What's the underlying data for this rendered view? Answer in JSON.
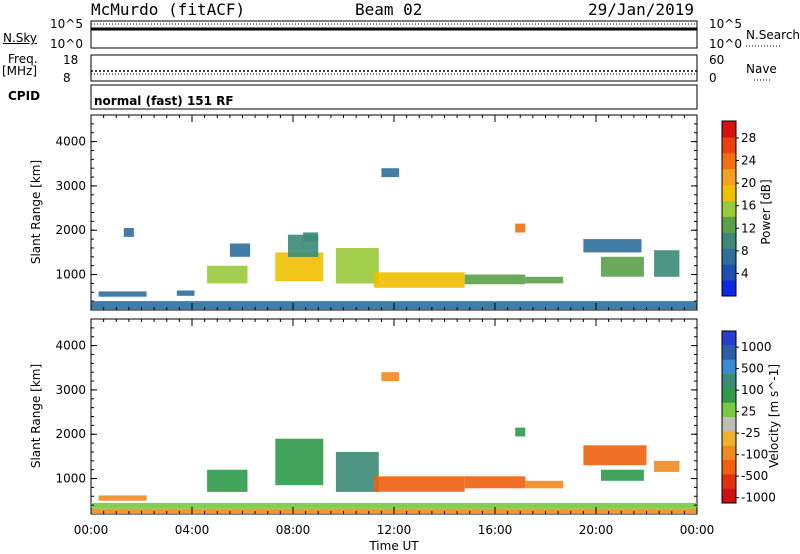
{
  "header": {
    "station": "McMurdo (fitACF)",
    "beam": "Beam 02",
    "date": "29/Jan/2019"
  },
  "panels": {
    "nsky": {
      "label": "N.Sky",
      "ticks": [
        "10^5",
        "10^0"
      ],
      "right_label": "N.Search",
      "right_ticks": [
        "10^5",
        "10^0"
      ]
    },
    "freq": {
      "label_line1": "Freq.",
      "label_line2": "[MHz]",
      "ticks": [
        "18",
        "8"
      ],
      "right_label": "Nave",
      "right_ticks": [
        "60",
        "0"
      ]
    },
    "cpid": {
      "label": "CPID",
      "text": "normal (fast) 151 RF"
    }
  },
  "colors": {
    "power": [
      "#0a28e6",
      "#1c4fb0",
      "#2f6e9a",
      "#3c8a76",
      "#5aa04a",
      "#9ac93a",
      "#f0c000",
      "#f4a020",
      "#f07010",
      "#e84010",
      "#d81010"
    ],
    "velocity": [
      "#2a3ccf",
      "#2a5fa8",
      "#3a8ad0",
      "#3c8a76",
      "#2f9a4a",
      "#78c840",
      "#bdbdb0",
      "#f0b030",
      "#f08a20",
      "#f06010",
      "#e03010",
      "#d01010"
    ]
  },
  "chart_data": [
    {
      "type": "heatmap",
      "name": "power",
      "xlabel": "",
      "ylabel": "Slant Range [km]",
      "x_ticks": [
        "00:00",
        "04:00",
        "08:00",
        "12:00",
        "16:00",
        "20:00",
        "00:00"
      ],
      "y_ticks": [
        1000,
        2000,
        3000,
        4000
      ],
      "ylim": [
        200,
        4600
      ],
      "xlim_hours": [
        0,
        24
      ],
      "colorbar": {
        "label": "Power [dB]",
        "ticks": [
          4,
          8,
          12,
          16,
          20,
          24,
          28
        ],
        "range": [
          0,
          31
        ]
      },
      "regions": [
        {
          "t0": 0.0,
          "t1": 24.0,
          "r0": 200,
          "r1": 400,
          "v": 6
        },
        {
          "t0": 0.3,
          "t1": 2.2,
          "r0": 500,
          "r1": 620,
          "v": 8
        },
        {
          "t0": 3.4,
          "t1": 4.1,
          "r0": 520,
          "r1": 640,
          "v": 6
        },
        {
          "t0": 4.6,
          "t1": 6.2,
          "r0": 800,
          "r1": 1200,
          "v": 16
        },
        {
          "t0": 7.3,
          "t1": 9.2,
          "r0": 850,
          "r1": 1500,
          "v": 18
        },
        {
          "t0": 7.8,
          "t1": 9.0,
          "r0": 1400,
          "r1": 1900,
          "v": 10
        },
        {
          "t0": 9.7,
          "t1": 11.4,
          "r0": 800,
          "r1": 1600,
          "v": 16
        },
        {
          "t0": 11.2,
          "t1": 14.8,
          "r0": 700,
          "r1": 1050,
          "v": 18
        },
        {
          "t0": 14.8,
          "t1": 17.2,
          "r0": 780,
          "r1": 1000,
          "v": 14
        },
        {
          "t0": 17.2,
          "t1": 18.7,
          "r0": 800,
          "r1": 950,
          "v": 12
        },
        {
          "t0": 20.2,
          "t1": 21.9,
          "r0": 950,
          "r1": 1400,
          "v": 12
        },
        {
          "t0": 22.3,
          "t1": 23.3,
          "r0": 950,
          "r1": 1550,
          "v": 10
        },
        {
          "t0": 5.5,
          "t1": 6.3,
          "r0": 1400,
          "r1": 1700,
          "v": 8
        },
        {
          "t0": 8.4,
          "t1": 9.0,
          "r0": 1750,
          "r1": 1950,
          "v": 10
        },
        {
          "t0": 11.5,
          "t1": 12.2,
          "r0": 3200,
          "r1": 3400,
          "v": 6
        },
        {
          "t0": 16.8,
          "t1": 17.2,
          "r0": 1950,
          "r1": 2150,
          "v": 24
        },
        {
          "t0": 19.5,
          "t1": 21.8,
          "r0": 1500,
          "r1": 1800,
          "v": 6
        },
        {
          "t0": 1.3,
          "t1": 1.7,
          "r0": 1850,
          "r1": 2050,
          "v": 6
        }
      ]
    },
    {
      "type": "heatmap",
      "name": "velocity",
      "xlabel": "Time UT",
      "ylabel": "Slant Range [km]",
      "x_ticks": [
        "00:00",
        "04:00",
        "08:00",
        "12:00",
        "16:00",
        "20:00",
        "00:00"
      ],
      "y_ticks": [
        1000,
        2000,
        3000,
        4000
      ],
      "ylim": [
        200,
        4600
      ],
      "xlim_hours": [
        0,
        24
      ],
      "colorbar": {
        "label": "Velocity [m s^-1]",
        "ticks": [
          1000,
          500,
          100,
          25,
          -25,
          -100,
          -500,
          -1000
        ]
      },
      "regions": [
        {
          "t0": 0.0,
          "t1": 24.0,
          "r0": 200,
          "r1": 320,
          "v": -120
        },
        {
          "t0": 0.0,
          "t1": 24.0,
          "r0": 320,
          "r1": 450,
          "v": 30
        },
        {
          "t0": 0.3,
          "t1": 2.2,
          "r0": 500,
          "r1": 620,
          "v": -200
        },
        {
          "t0": 4.6,
          "t1": 6.2,
          "r0": 700,
          "r1": 1200,
          "v": 60
        },
        {
          "t0": 7.3,
          "t1": 9.2,
          "r0": 850,
          "r1": 1900,
          "v": 80
        },
        {
          "t0": 9.7,
          "t1": 11.4,
          "r0": 700,
          "r1": 1600,
          "v": 200
        },
        {
          "t0": 11.2,
          "t1": 14.8,
          "r0": 700,
          "r1": 1050,
          "v": -300
        },
        {
          "t0": 14.8,
          "t1": 17.2,
          "r0": 780,
          "r1": 1050,
          "v": -300
        },
        {
          "t0": 17.2,
          "t1": 18.7,
          "r0": 780,
          "r1": 950,
          "v": -200
        },
        {
          "t0": 19.5,
          "t1": 22.0,
          "r0": 1300,
          "r1": 1750,
          "v": -300
        },
        {
          "t0": 22.3,
          "t1": 23.3,
          "r0": 1150,
          "r1": 1400,
          "v": -150
        },
        {
          "t0": 20.2,
          "t1": 21.9,
          "r0": 950,
          "r1": 1200,
          "v": 60
        },
        {
          "t0": 11.5,
          "t1": 12.2,
          "r0": 3200,
          "r1": 3400,
          "v": -150
        },
        {
          "t0": 16.8,
          "t1": 17.2,
          "r0": 1950,
          "r1": 2150,
          "v": 60
        }
      ]
    }
  ]
}
